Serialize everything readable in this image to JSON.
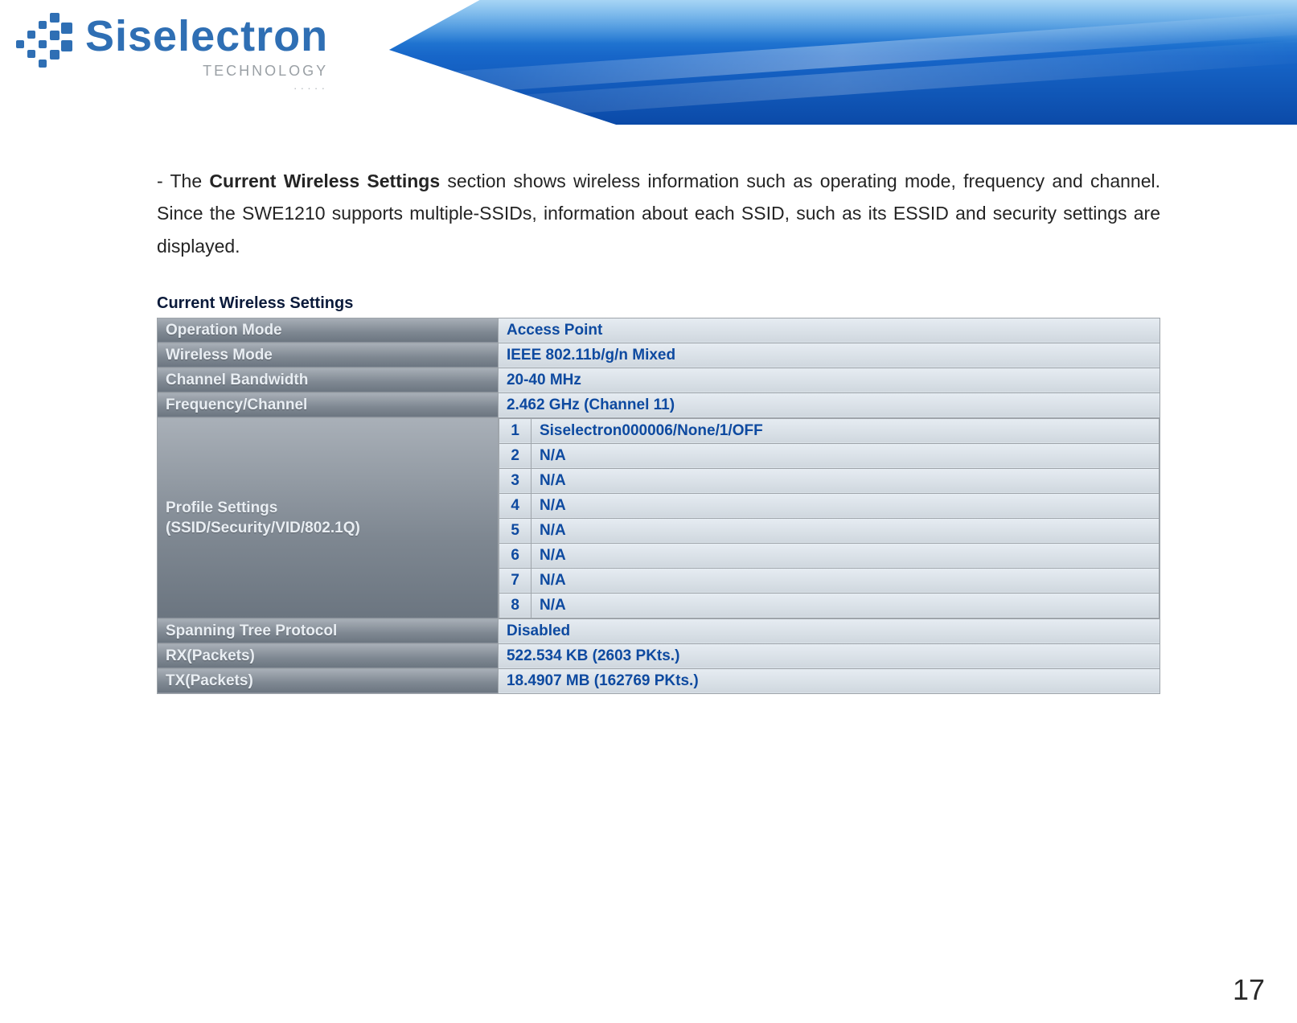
{
  "brand": {
    "name": "Siselectron",
    "sub": "TECHNOLOGY",
    "dots": "·····"
  },
  "paragraph": {
    "prefix": "-  The ",
    "bold": "Current Wireless Settings",
    "rest": " section shows wireless information such as operating mode, frequency and channel. Since the SWE1210 supports multiple-SSIDs, information about each SSID, such as its ESSID and security  settings are displayed."
  },
  "table": {
    "title": "Current Wireless Settings",
    "rows": {
      "operation_mode": {
        "label": "Operation Mode",
        "value": "Access Point"
      },
      "wireless_mode": {
        "label": "Wireless Mode",
        "value": "IEEE 802.11b/g/n Mixed"
      },
      "channel_bw": {
        "label": "Channel Bandwidth",
        "value": "20-40 MHz"
      },
      "freq_channel": {
        "label": "Frequency/Channel",
        "value": "2.462 GHz (Channel 11)"
      },
      "profile_label_1": "Profile Settings",
      "profile_label_2": "(SSID/Security/VID/802.1Q)",
      "stp": {
        "label": "Spanning Tree Protocol",
        "value": "Disabled"
      },
      "rx": {
        "label": "RX(Packets)",
        "value": "522.534 KB (2603 PKts.)"
      },
      "tx": {
        "label": "TX(Packets)",
        "value": "18.4907 MB (162769 PKts.)"
      }
    },
    "profiles": [
      {
        "idx": "1",
        "val": "Siselectron000006/None/1/OFF"
      },
      {
        "idx": "2",
        "val": "N/A"
      },
      {
        "idx": "3",
        "val": "N/A"
      },
      {
        "idx": "4",
        "val": "N/A"
      },
      {
        "idx": "5",
        "val": "N/A"
      },
      {
        "idx": "6",
        "val": "N/A"
      },
      {
        "idx": "7",
        "val": "N/A"
      },
      {
        "idx": "8",
        "val": "N/A"
      }
    ]
  },
  "page_number": "17",
  "colors": {
    "brand_blue": "#2f6fb4",
    "value_text": "#0e4aa0",
    "label_grad_top": "#a9b0b8",
    "label_grad_bot": "#6b7580",
    "value_grad_top": "#e6ecf2",
    "value_grad_bot": "#cfd7de",
    "border": "#9ea4aa"
  }
}
